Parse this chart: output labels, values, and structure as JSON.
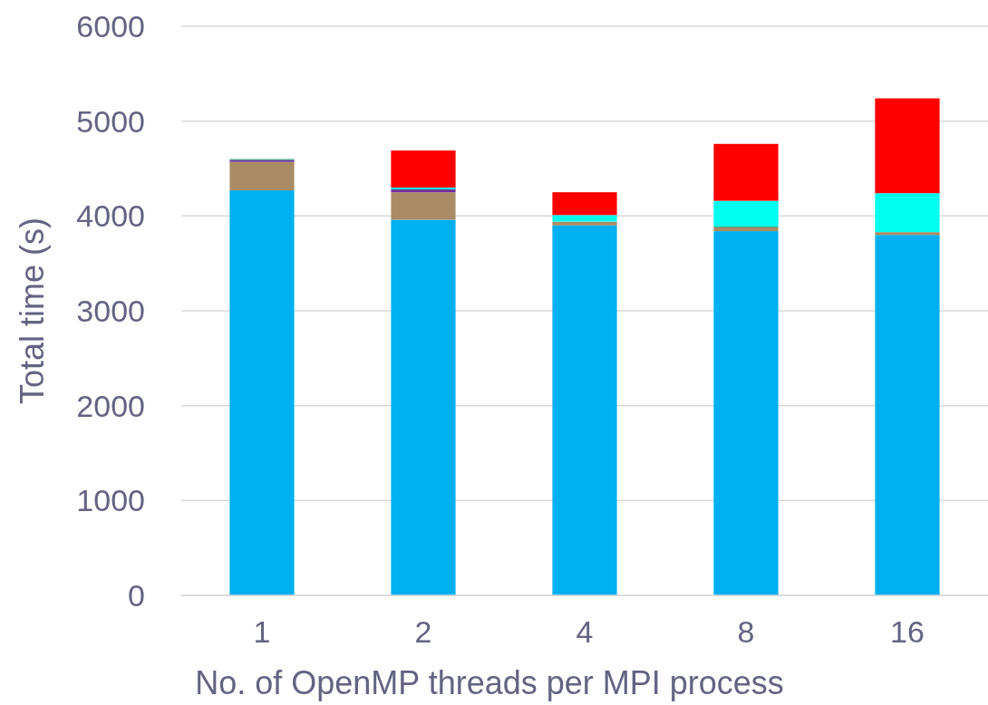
{
  "chart_data": {
    "type": "bar",
    "stacked": true,
    "xlabel": "No. of OpenMP threads per MPI process",
    "ylabel": "Total time (s)",
    "categories": [
      "1",
      "2",
      "4",
      "8",
      "16"
    ],
    "ylim": [
      0,
      6000
    ],
    "yticks": [
      0,
      1000,
      2000,
      3000,
      4000,
      5000,
      6000
    ],
    "grid": "y",
    "series": [
      {
        "color": "#00b0f0",
        "values": [
          4270,
          3960,
          3900,
          3840,
          3800
        ]
      },
      {
        "color": "#a98c66",
        "values": [
          300,
          290,
          40,
          40,
          30
        ]
      },
      {
        "color": "#7030a0",
        "values": [
          20,
          30,
          0,
          0,
          0
        ]
      },
      {
        "color": "#2e9e6e",
        "values": [
          10,
          0,
          0,
          10,
          0
        ]
      },
      {
        "color": "#00ffee",
        "values": [
          0,
          20,
          70,
          270,
          410
        ]
      },
      {
        "color": "#ff0000",
        "values": [
          0,
          390,
          240,
          600,
          1000
        ]
      }
    ]
  }
}
